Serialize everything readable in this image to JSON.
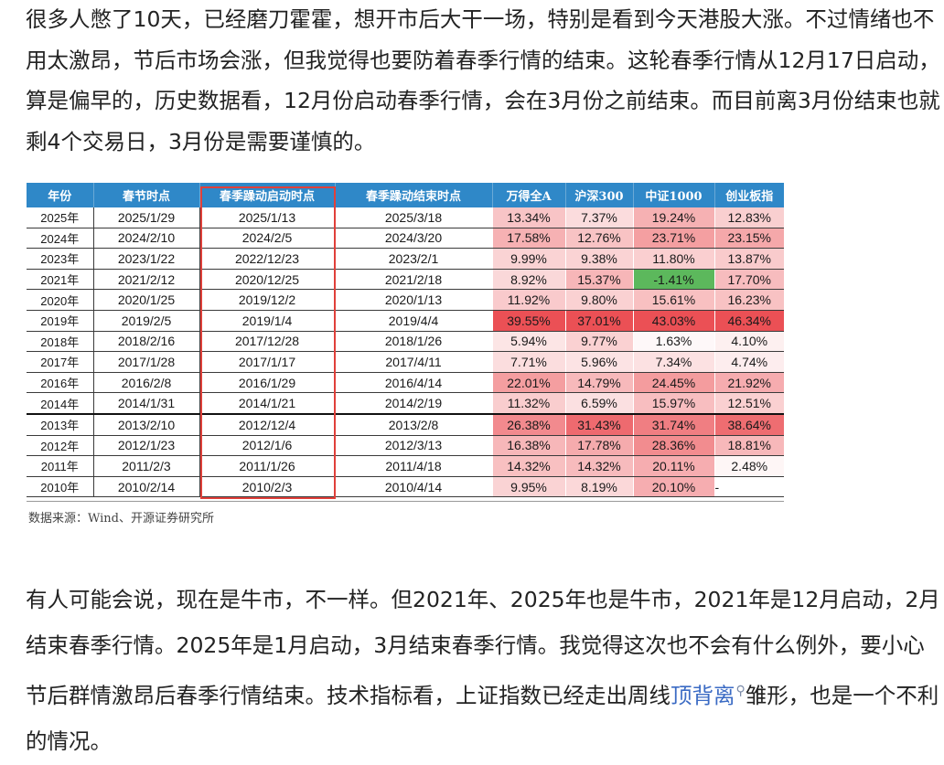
{
  "paragraph1": "很多人憋了10天，已经磨刀霍霍，想开市后大干一场，特别是看到今天港股大涨。不过情绪也不用太激昂，节后市场会涨，但我觉得也要防着春季行情的结束。这轮春季行情从12月17日启动，算是偏早的，历史数据看，12月份启动春季行情，会在3月份之前结束。而目前离3月份结束也就剩4个交易日，3月份是需要谨慎的。",
  "table": {
    "headers": [
      "年份",
      "春节时点",
      "春季躁动启动时点",
      "春季躁动结束时点",
      "万得全A",
      "沪深300",
      "中证1000",
      "创业板指"
    ],
    "rows": [
      {
        "year": "2025年",
        "spring": "2025/1/29",
        "start": "2025/1/13",
        "end": "2025/3/18",
        "wind": "13.34%",
        "hs300": "7.37%",
        "zz1000": "19.24%",
        "cyb": "12.83%"
      },
      {
        "year": "2024年",
        "spring": "2024/2/10",
        "start": "2024/2/5",
        "end": "2024/3/20",
        "wind": "17.58%",
        "hs300": "12.76%",
        "zz1000": "23.71%",
        "cyb": "23.15%"
      },
      {
        "year": "2023年",
        "spring": "2023/1/22",
        "start": "2022/12/23",
        "end": "2023/2/1",
        "wind": "9.99%",
        "hs300": "9.38%",
        "zz1000": "11.80%",
        "cyb": "13.87%"
      },
      {
        "year": "2021年",
        "spring": "2021/2/12",
        "start": "2020/12/25",
        "end": "2021/2/18",
        "wind": "8.92%",
        "hs300": "15.37%",
        "zz1000": "-1.41%",
        "cyb": "17.70%"
      },
      {
        "year": "2020年",
        "spring": "2020/1/25",
        "start": "2019/12/2",
        "end": "2020/1/13",
        "wind": "11.92%",
        "hs300": "9.80%",
        "zz1000": "15.61%",
        "cyb": "16.23%"
      },
      {
        "year": "2019年",
        "spring": "2019/2/5",
        "start": "2019/1/4",
        "end": "2019/4/4",
        "wind": "39.55%",
        "hs300": "37.01%",
        "zz1000": "43.03%",
        "cyb": "46.34%"
      },
      {
        "year": "2018年",
        "spring": "2018/2/16",
        "start": "2017/12/28",
        "end": "2018/1/26",
        "wind": "5.94%",
        "hs300": "9.77%",
        "zz1000": "1.63%",
        "cyb": "4.10%"
      },
      {
        "year": "2017年",
        "spring": "2017/1/28",
        "start": "2017/1/17",
        "end": "2017/4/11",
        "wind": "7.71%",
        "hs300": "5.96%",
        "zz1000": "7.34%",
        "cyb": "4.74%"
      },
      {
        "year": "2016年",
        "spring": "2016/2/8",
        "start": "2016/1/29",
        "end": "2016/4/14",
        "wind": "22.01%",
        "hs300": "14.79%",
        "zz1000": "24.45%",
        "cyb": "21.92%"
      },
      {
        "year": "2014年",
        "spring": "2014/1/31",
        "start": "2014/1/21",
        "end": "2014/2/19",
        "wind": "11.32%",
        "hs300": "6.59%",
        "zz1000": "15.97%",
        "cyb": "12.51%"
      },
      {
        "year": "2013年",
        "spring": "2013/2/10",
        "start": "2012/12/4",
        "end": "2013/2/8",
        "wind": "26.38%",
        "hs300": "31.43%",
        "zz1000": "31.74%",
        "cyb": "38.64%"
      },
      {
        "year": "2012年",
        "spring": "2012/1/23",
        "start": "2012/1/6",
        "end": "2012/3/13",
        "wind": "16.38%",
        "hs300": "17.78%",
        "zz1000": "28.36%",
        "cyb": "18.81%"
      },
      {
        "year": "2011年",
        "spring": "2011/2/3",
        "start": "2011/1/26",
        "end": "2011/4/18",
        "wind": "14.32%",
        "hs300": "14.32%",
        "zz1000": "20.11%",
        "cyb": "2.48%"
      },
      {
        "year": "2010年",
        "spring": "2010/2/14",
        "start": "2010/2/3",
        "end": "2010/4/14",
        "wind": "9.95%",
        "hs300": "8.19%",
        "zz1000": "20.10%",
        "cyb": "-"
      }
    ],
    "source": "数据来源：Wind、开源证券研究所"
  },
  "paragraph2_before": "有人可能会说，现在是牛市，不一样。但2021年、2025年也是牛市，2021年是12月启动，2月结束春季行情。2025年是1月启动，3月结束春季行情。我觉得这次也不会有什么例外，要小心节后群情激昂后春季行情结束。技术指标看，上证指数已经走出周线",
  "paragraph2_link": "顶背离",
  "paragraph2_after": "雏形，也是一个不利的情况。",
  "colors": {
    "header_bg": "#2f88c8",
    "highlight_box": "#e0403a",
    "negative_cell": "#5cb85c",
    "link": "#3b6bc4"
  }
}
